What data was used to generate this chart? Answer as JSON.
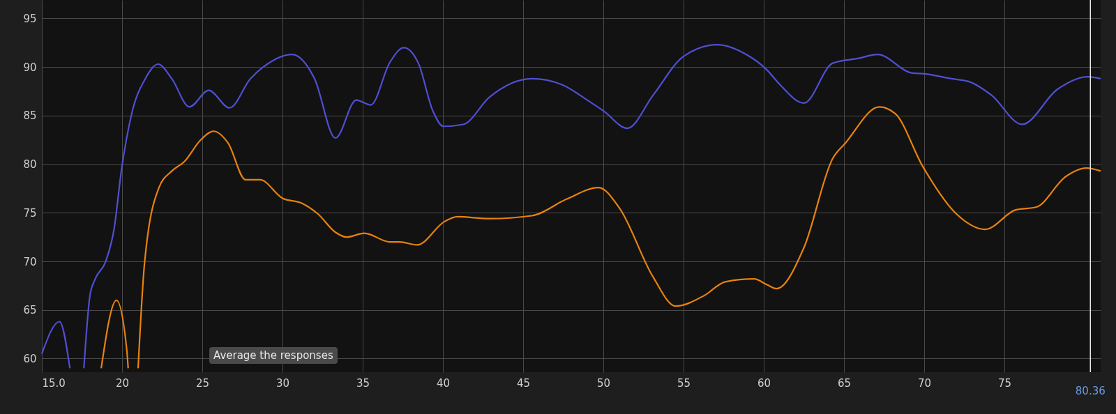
{
  "chart_data": {
    "type": "line",
    "xlim": [
      15,
      81
    ],
    "ylim": [
      58.6,
      96.9
    ],
    "xticks": [
      {
        "value": 15,
        "label": "15.0"
      },
      20,
      25,
      30,
      35,
      40,
      45,
      50,
      55,
      60,
      65,
      70,
      75
    ],
    "yticks": [
      60,
      65,
      70,
      75,
      80,
      85,
      90,
      95
    ],
    "grid": true,
    "annotations": [
      "Average the responses"
    ],
    "ref_lines": [
      {
        "axis": "x",
        "value": 80.36,
        "label": "80.36",
        "color": "#e8e8e8"
      }
    ],
    "series": [
      {
        "color": "#4f4fd2",
        "x": [
          15.0,
          16.1,
          16.75,
          17.2,
          17.62,
          18.0,
          18.3,
          18.98,
          19.5,
          19.97,
          20.6,
          21.45,
          22.25,
          23.1,
          24.2,
          25.4,
          26.7,
          28.0,
          28.8,
          30.6,
          32.0,
          33.3,
          34.6,
          35.5,
          36.7,
          37.56,
          38.47,
          39.37,
          40.03,
          41.27,
          42.9,
          45.55,
          47.4,
          49.0,
          50.0,
          51.5,
          53.1,
          55.0,
          57.1,
          58.9,
          60.2,
          61.0,
          62.5,
          64.3,
          65.9,
          67.1,
          69.2,
          70.0,
          71.7,
          72.8,
          74.2,
          76.1,
          78.3,
          80.2,
          81.0
        ],
        "values": [
          60.5,
          63.8,
          59.0,
          null,
          59.0,
          66.5,
          68.1,
          70.0,
          73.3,
          79.5,
          85.2,
          88.8,
          90.3,
          88.8,
          85.9,
          87.6,
          85.8,
          88.8,
          90.0,
          91.3,
          88.8,
          82.7,
          86.6,
          86.1,
          90.5,
          92.0,
          90.4,
          85.5,
          83.9,
          84.1,
          86.9,
          88.8,
          88.2,
          86.6,
          85.5,
          83.7,
          87.1,
          91.1,
          92.3,
          91.3,
          89.7,
          88.2,
          86.3,
          90.4,
          90.9,
          91.3,
          89.4,
          89.3,
          88.8,
          88.5,
          87.1,
          84.1,
          87.7,
          89.0,
          88.8
        ]
      },
      {
        "color": "#e8820e",
        "x": [
          18.7,
          19.65,
          20.3,
          20.38,
          20.7,
          21.0,
          21.4,
          22.3,
          23.1,
          23.9,
          24.9,
          25.7,
          26.6,
          27.7,
          28.6,
          30.0,
          31.2,
          32.2,
          33.3,
          34.0,
          35.1,
          36.7,
          37.3,
          38.4,
          40.1,
          40.9,
          42.9,
          45.55,
          47.7,
          49.7,
          51.0,
          53.1,
          54.5,
          56.3,
          57.6,
          59.4,
          60.2,
          60.8,
          62.5,
          64.3,
          65.1,
          67.2,
          68.2,
          69.9,
          72.0,
          73.8,
          75.7,
          77.0,
          78.8,
          80.1,
          81.0
        ],
        "values": [
          59.0,
          66.0,
          60.8,
          59.0,
          null,
          59.0,
          69.8,
          77.6,
          79.3,
          80.3,
          82.5,
          83.4,
          82.2,
          78.4,
          78.4,
          76.5,
          76.0,
          74.9,
          73.0,
          72.5,
          72.9,
          72.0,
          72.0,
          71.7,
          74.1,
          74.6,
          74.4,
          74.7,
          76.4,
          77.6,
          75.5,
          68.4,
          65.4,
          66.5,
          67.9,
          68.2,
          67.6,
          67.2,
          71.4,
          80.6,
          82.2,
          85.9,
          85.2,
          79.8,
          74.9,
          73.3,
          75.3,
          75.6,
          78.7,
          79.6,
          79.3
        ]
      }
    ]
  }
}
